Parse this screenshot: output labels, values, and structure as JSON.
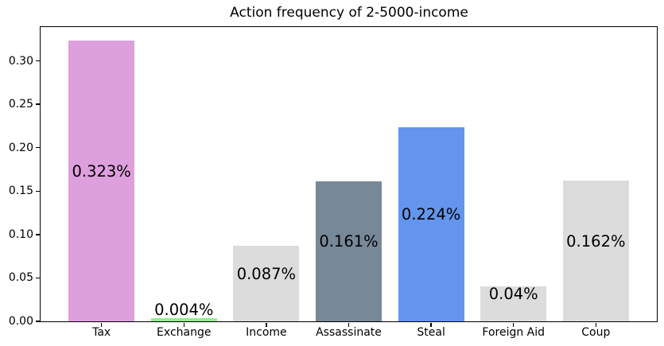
{
  "figure": {
    "title": "Action frequency of 2-5000-income",
    "background_color": "#FFFFFF",
    "text_color": "#000000",
    "axis_color": "#000000"
  },
  "chart_data": {
    "type": "bar",
    "title": "Action frequency of 2-5000-income",
    "categories": [
      "Tax",
      "Exchange",
      "Income",
      "Assassinate",
      "Steal",
      "Foreign Aid",
      "Coup"
    ],
    "values": [
      0.323,
      0.004,
      0.087,
      0.161,
      0.224,
      0.04,
      0.162
    ],
    "bar_labels": [
      "0.323%",
      "0.004%",
      "0.087%",
      "0.161%",
      "0.224%",
      "0.04%",
      "0.162%"
    ],
    "bar_colors": [
      "#DDA0DD",
      "#90EE90",
      "#DCDCDC",
      "#778899",
      "#6495ED",
      "#DCDCDC",
      "#DCDCDC"
    ],
    "xlabel": "",
    "ylabel": "",
    "xlim": [
      -0.74,
      6.74
    ],
    "ylim": [
      0,
      0.339
    ],
    "bar_width": 0.8,
    "yticks": [
      0,
      0.05,
      0.1,
      0.15,
      0.2,
      0.25,
      0.3
    ],
    "ytick_labels": [
      "0.00",
      "0.05",
      "0.10",
      "0.15",
      "0.20",
      "0.25",
      "0.30"
    ],
    "grid": false,
    "legend": "none"
  }
}
